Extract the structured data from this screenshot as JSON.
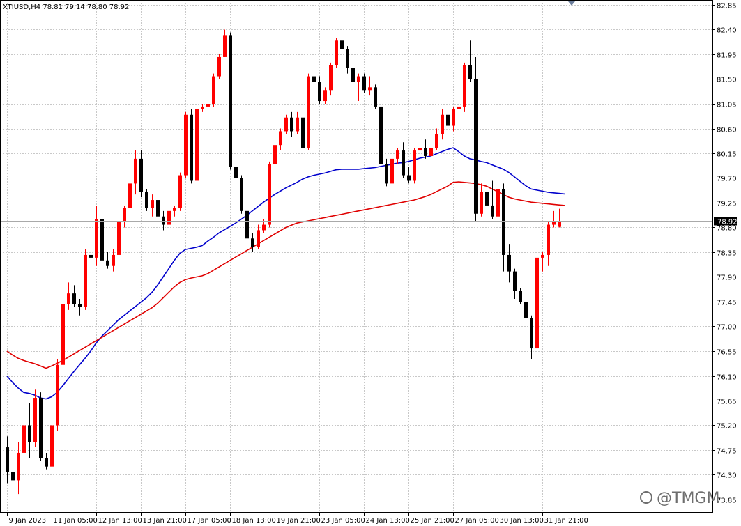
{
  "header": {
    "text": "XTIUSD,H4  78.81 79.14 78.80 78.92"
  },
  "watermark": "@TMGM",
  "colors": {
    "bull": "#ff0000",
    "bear": "#000000",
    "ma_fast": "#0000cc",
    "ma_slow": "#e00000",
    "grid": "#c8c8c8",
    "price_tag_bg": "#000000"
  },
  "chart_data": {
    "type": "candlestick",
    "symbol": "XTIUSD",
    "timeframe": "H4",
    "last_price": "78.92",
    "ylim": [
      73.95,
      82.85
    ],
    "y_ticks": [
      "82.85",
      "82.40",
      "81.95",
      "81.50",
      "81.05",
      "80.60",
      "80.15",
      "79.70",
      "79.25",
      "78.80",
      "78.35",
      "77.90",
      "77.45",
      "77.00",
      "76.55",
      "76.10",
      "75.65",
      "75.20",
      "74.75",
      "74.30",
      "73.85"
    ],
    "x_ticks": [
      "9 Jan 2023",
      "11 Jan 05:00",
      "12 Jan 13:00",
      "13 Jan 21:00",
      "17 Jan 05:00",
      "18 Jan 13:00",
      "19 Jan 21:00",
      "23 Jan 05:00",
      "24 Jan 13:00",
      "25 Jan 21:00",
      "27 Jan 05:00",
      "30 Jan 13:00",
      "31 Jan 21:00"
    ],
    "x_tick_index": [
      0,
      8,
      16,
      24,
      32,
      40,
      48,
      56,
      64,
      72,
      80,
      88,
      96
    ],
    "candles": [
      [
        74.8,
        75.0,
        74.15,
        74.35
      ],
      [
        74.35,
        74.55,
        74.1,
        74.2
      ],
      [
        74.2,
        74.9,
        73.95,
        74.7
      ],
      [
        74.7,
        75.4,
        74.5,
        75.2
      ],
      [
        75.2,
        75.6,
        74.6,
        74.9
      ],
      [
        74.9,
        75.85,
        74.8,
        75.7
      ],
      [
        75.7,
        75.8,
        74.55,
        74.6
      ],
      [
        74.6,
        74.7,
        74.4,
        74.45
      ],
      [
        74.45,
        75.3,
        74.3,
        75.2
      ],
      [
        75.2,
        76.4,
        75.1,
        76.3
      ],
      [
        76.3,
        77.5,
        76.2,
        77.4
      ],
      [
        77.4,
        77.8,
        77.3,
        77.6
      ],
      [
        77.6,
        77.75,
        77.35,
        77.4
      ],
      [
        77.4,
        77.5,
        77.2,
        77.35
      ],
      [
        77.35,
        78.4,
        77.3,
        78.3
      ],
      [
        78.3,
        78.35,
        78.2,
        78.25
      ],
      [
        78.25,
        79.2,
        78.1,
        78.95
      ],
      [
        78.95,
        79.05,
        78.05,
        78.2
      ],
      [
        78.2,
        78.35,
        78.05,
        78.1
      ],
      [
        78.1,
        78.4,
        78.0,
        78.3
      ],
      [
        78.3,
        79.0,
        78.2,
        78.9
      ],
      [
        78.9,
        79.2,
        78.8,
        79.15
      ],
      [
        79.15,
        79.7,
        79.0,
        79.6
      ],
      [
        79.6,
        80.2,
        79.4,
        80.05
      ],
      [
        80.05,
        80.2,
        79.35,
        79.45
      ],
      [
        79.45,
        79.5,
        79.1,
        79.15
      ],
      [
        79.15,
        79.4,
        79.0,
        79.3
      ],
      [
        79.3,
        79.35,
        78.95,
        79.0
      ],
      [
        79.0,
        79.1,
        78.75,
        78.85
      ],
      [
        78.85,
        79.2,
        78.8,
        79.1
      ],
      [
        79.1,
        79.2,
        79.0,
        79.15
      ],
      [
        79.15,
        79.8,
        79.1,
        79.75
      ],
      [
        79.75,
        80.9,
        79.7,
        80.85
      ],
      [
        80.85,
        80.95,
        79.6,
        79.65
      ],
      [
        79.65,
        81.0,
        79.6,
        80.95
      ],
      [
        80.95,
        81.05,
        80.9,
        81.0
      ],
      [
        81.0,
        81.1,
        80.9,
        81.05
      ],
      [
        81.05,
        81.6,
        81.0,
        81.55
      ],
      [
        81.55,
        81.95,
        81.5,
        81.9
      ],
      [
        81.9,
        82.4,
        81.9,
        82.3
      ],
      [
        82.3,
        82.35,
        79.85,
        79.9
      ],
      [
        79.9,
        80.05,
        79.6,
        79.7
      ],
      [
        79.7,
        79.75,
        79.05,
        79.1
      ],
      [
        79.1,
        79.2,
        78.55,
        78.6
      ],
      [
        78.6,
        78.7,
        78.35,
        78.45
      ],
      [
        78.45,
        78.85,
        78.4,
        78.75
      ],
      [
        78.75,
        78.95,
        78.7,
        78.85
      ],
      [
        78.85,
        80.0,
        78.8,
        79.95
      ],
      [
        79.95,
        80.35,
        79.9,
        80.3
      ],
      [
        80.3,
        80.6,
        80.2,
        80.55
      ],
      [
        80.55,
        80.85,
        80.5,
        80.8
      ],
      [
        80.8,
        80.9,
        80.45,
        80.55
      ],
      [
        80.55,
        80.9,
        80.5,
        80.8
      ],
      [
        80.8,
        80.85,
        80.15,
        80.25
      ],
      [
        80.25,
        81.6,
        80.2,
        81.55
      ],
      [
        81.55,
        81.6,
        81.4,
        81.45
      ],
      [
        81.45,
        81.55,
        81.05,
        81.1
      ],
      [
        81.1,
        81.35,
        81.05,
        81.3
      ],
      [
        81.3,
        81.8,
        81.2,
        81.75
      ],
      [
        81.75,
        82.25,
        81.7,
        82.2
      ],
      [
        82.2,
        82.35,
        81.95,
        82.05
      ],
      [
        82.05,
        82.1,
        81.6,
        81.7
      ],
      [
        81.7,
        81.75,
        81.35,
        81.45
      ],
      [
        81.45,
        81.6,
        81.1,
        81.55
      ],
      [
        81.55,
        81.6,
        81.25,
        81.3
      ],
      [
        81.3,
        81.55,
        81.2,
        81.35
      ],
      [
        81.35,
        81.4,
        80.95,
        81.0
      ],
      [
        81.0,
        81.05,
        79.85,
        79.95
      ],
      [
        79.95,
        80.05,
        79.55,
        79.6
      ],
      [
        79.6,
        80.1,
        79.55,
        80.05
      ],
      [
        80.05,
        80.25,
        79.95,
        80.2
      ],
      [
        80.2,
        80.35,
        79.7,
        79.75
      ],
      [
        79.75,
        79.9,
        79.6,
        79.65
      ],
      [
        79.65,
        80.25,
        79.6,
        80.2
      ],
      [
        80.2,
        80.3,
        80.1,
        80.25
      ],
      [
        80.25,
        80.4,
        80.05,
        80.1
      ],
      [
        80.1,
        80.3,
        80.0,
        80.25
      ],
      [
        80.25,
        80.6,
        80.2,
        80.5
      ],
      [
        80.5,
        80.95,
        80.4,
        80.85
      ],
      [
        80.85,
        81.0,
        80.6,
        80.65
      ],
      [
        80.65,
        81.0,
        80.55,
        80.95
      ],
      [
        80.95,
        81.1,
        80.8,
        81.0
      ],
      [
        81.0,
        81.8,
        80.9,
        81.75
      ],
      [
        81.75,
        82.2,
        81.45,
        81.5
      ],
      [
        81.5,
        81.9,
        78.9,
        79.05
      ],
      [
        79.05,
        79.6,
        79.0,
        79.45
      ],
      [
        79.45,
        79.8,
        78.9,
        79.2
      ],
      [
        79.2,
        79.65,
        78.95,
        79.0
      ],
      [
        79.0,
        79.55,
        78.6,
        79.5
      ],
      [
        79.5,
        79.6,
        78.0,
        78.3
      ],
      [
        78.3,
        78.5,
        77.8,
        78.0
      ],
      [
        78.0,
        78.05,
        77.5,
        77.65
      ],
      [
        77.65,
        77.7,
        77.4,
        77.45
      ],
      [
        77.45,
        77.5,
        77.0,
        77.15
      ],
      [
        77.15,
        77.2,
        76.4,
        76.6
      ],
      [
        76.6,
        78.35,
        76.45,
        78.25
      ],
      [
        78.25,
        78.35,
        78.0,
        78.3
      ],
      [
        78.3,
        78.9,
        78.1,
        78.85
      ],
      [
        78.85,
        79.1,
        78.8,
        78.9
      ],
      [
        78.81,
        79.14,
        78.8,
        78.92
      ]
    ],
    "series": [
      {
        "values": [
          76.1,
          75.98,
          75.88,
          75.8,
          75.78,
          75.75,
          75.7,
          75.68,
          75.72,
          75.8,
          75.92,
          76.05,
          76.18,
          76.3,
          76.42,
          76.55,
          76.7,
          76.82,
          76.92,
          77.02,
          77.12,
          77.2,
          77.28,
          77.36,
          77.44,
          77.52,
          77.62,
          77.75,
          77.9,
          78.05,
          78.2,
          78.33,
          78.4,
          78.42,
          78.44,
          78.47,
          78.55,
          78.62,
          78.7,
          78.76,
          78.82,
          78.88,
          78.95,
          79.02,
          79.1,
          79.18,
          79.26,
          79.33,
          79.4,
          79.46,
          79.52,
          79.57,
          79.62,
          79.68,
          79.72,
          79.75,
          79.77,
          79.79,
          79.82,
          79.85,
          79.86,
          79.86,
          79.86,
          79.86,
          79.87,
          79.88,
          79.89,
          79.91,
          79.93,
          79.95,
          79.97,
          79.98,
          80.0,
          80.03,
          80.06,
          80.08,
          80.1,
          80.14,
          80.18,
          80.22,
          80.25,
          80.18,
          80.1,
          80.05,
          80.03,
          80.0,
          79.98,
          79.94,
          79.9,
          79.86,
          79.8,
          79.72,
          79.64,
          79.56,
          79.5,
          79.48,
          79.46,
          79.44,
          79.43,
          79.42,
          79.41
        ]
      },
      {
        "values": [
          76.55,
          76.48,
          76.42,
          76.38,
          76.35,
          76.32,
          76.28,
          76.24,
          76.28,
          76.33,
          76.38,
          76.44,
          76.5,
          76.56,
          76.62,
          76.68,
          76.74,
          76.8,
          76.86,
          76.92,
          76.98,
          77.04,
          77.1,
          77.16,
          77.22,
          77.28,
          77.34,
          77.42,
          77.52,
          77.62,
          77.72,
          77.8,
          77.85,
          77.88,
          77.9,
          77.92,
          77.96,
          78.02,
          78.08,
          78.14,
          78.2,
          78.26,
          78.32,
          78.38,
          78.44,
          78.5,
          78.56,
          78.62,
          78.68,
          78.74,
          78.8,
          78.84,
          78.88,
          78.9,
          78.92,
          78.94,
          78.96,
          78.98,
          79.0,
          79.02,
          79.04,
          79.06,
          79.08,
          79.1,
          79.12,
          79.14,
          79.16,
          79.18,
          79.2,
          79.22,
          79.24,
          79.26,
          79.28,
          79.3,
          79.33,
          79.36,
          79.4,
          79.45,
          79.5,
          79.55,
          79.62,
          79.63,
          79.62,
          79.61,
          79.6,
          79.58,
          79.55,
          79.5,
          79.45,
          79.4,
          79.35,
          79.32,
          79.3,
          79.28,
          79.26,
          79.25,
          79.24,
          79.23,
          79.22,
          79.21,
          79.2
        ]
      }
    ]
  }
}
